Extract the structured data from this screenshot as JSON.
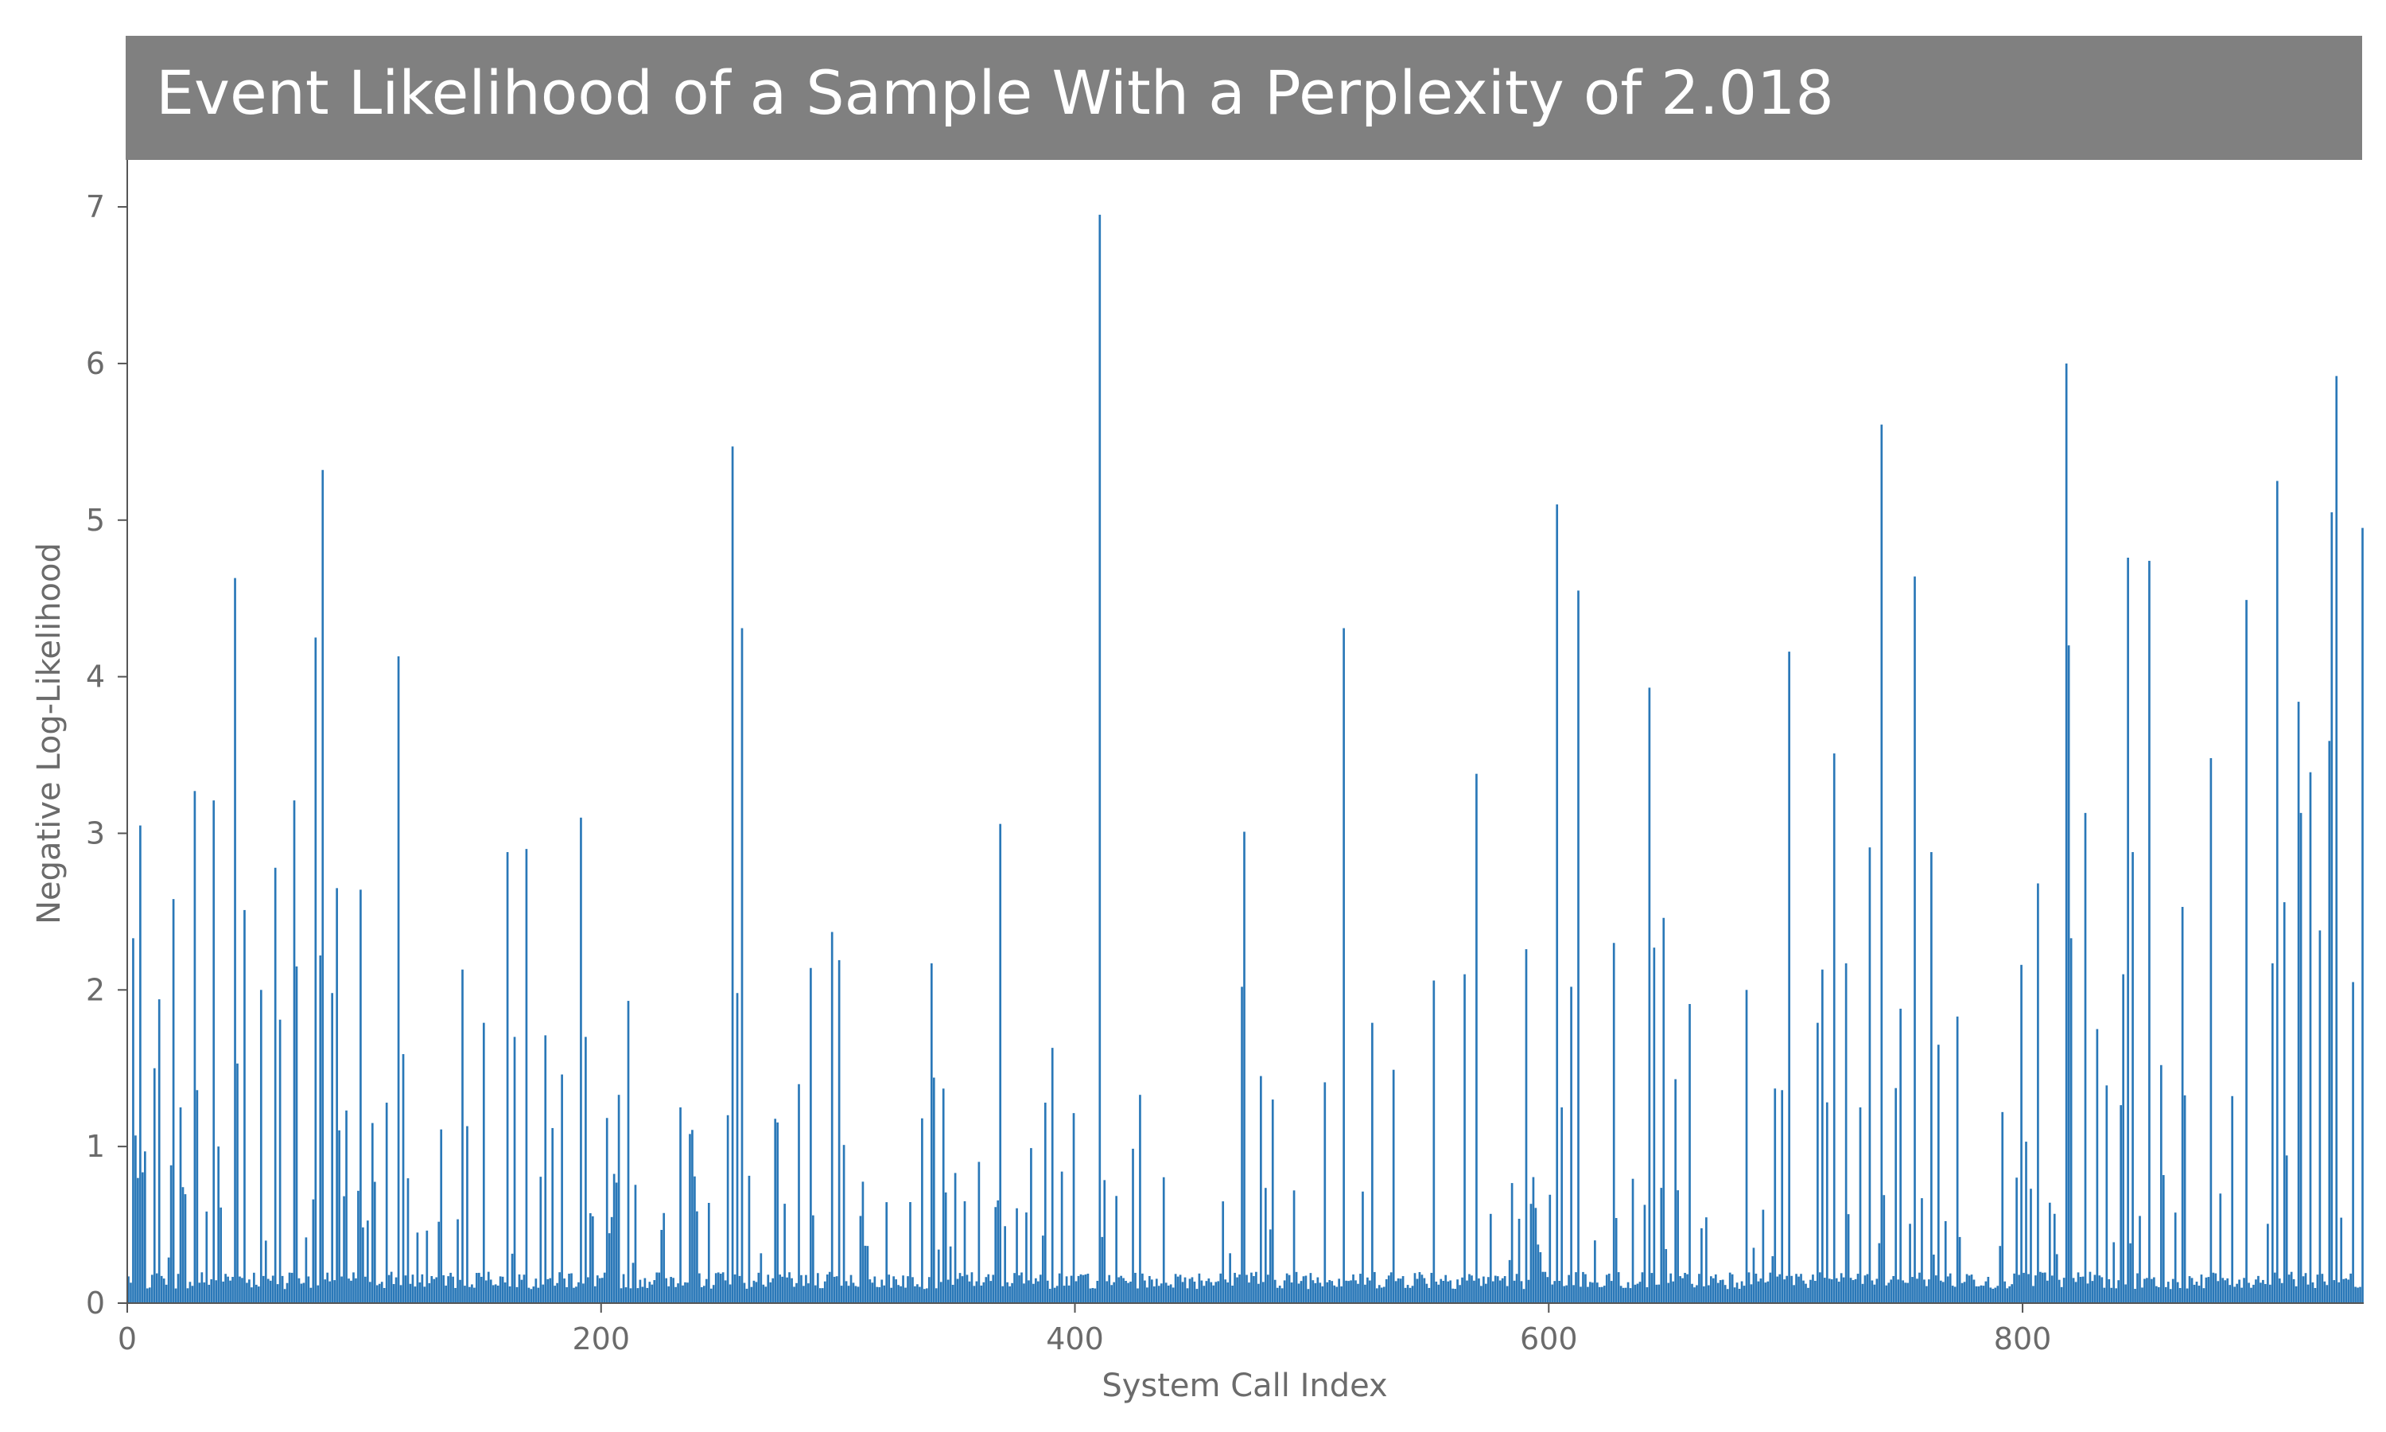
{
  "colors": {
    "bar": "#2a78b8",
    "title_band": "#808080",
    "title_text": "#ffffff",
    "axis": "#555555",
    "tick_text": "#6b6b6b"
  },
  "chart_data": {
    "type": "bar",
    "title": "Event Likelihood of a Sample With a Perplexity of 2.018",
    "xlabel": "System Call Index",
    "ylabel": "Negative Log-Likelihood",
    "xlim": [
      0,
      944
    ],
    "ylim": [
      0,
      7.3
    ],
    "xticks": [
      0,
      200,
      400,
      600,
      800
    ],
    "yticks": [
      0,
      1,
      2,
      3,
      4,
      5,
      6,
      7
    ],
    "grid": false,
    "baseline": 0.15,
    "peaks": [
      {
        "x": 2,
        "y": 2.33
      },
      {
        "x": 5,
        "y": 3.05
      },
      {
        "x": 11,
        "y": 1.5
      },
      {
        "x": 13,
        "y": 1.94
      },
      {
        "x": 18,
        "y": 0.88
      },
      {
        "x": 19,
        "y": 2.58
      },
      {
        "x": 22,
        "y": 1.25
      },
      {
        "x": 28,
        "y": 3.27
      },
      {
        "x": 29,
        "y": 1.36
      },
      {
        "x": 36,
        "y": 3.21
      },
      {
        "x": 38,
        "y": 1.0
      },
      {
        "x": 45,
        "y": 4.63
      },
      {
        "x": 46,
        "y": 1.53
      },
      {
        "x": 49,
        "y": 2.51
      },
      {
        "x": 56,
        "y": 2.0
      },
      {
        "x": 62,
        "y": 2.78
      },
      {
        "x": 64,
        "y": 1.81
      },
      {
        "x": 70,
        "y": 3.21
      },
      {
        "x": 71,
        "y": 2.15
      },
      {
        "x": 79,
        "y": 4.25
      },
      {
        "x": 81,
        "y": 2.22
      },
      {
        "x": 82,
        "y": 5.32
      },
      {
        "x": 86,
        "y": 1.98
      },
      {
        "x": 88,
        "y": 2.65
      },
      {
        "x": 92,
        "y": 1.23
      },
      {
        "x": 98,
        "y": 2.64
      },
      {
        "x": 103,
        "y": 1.15
      },
      {
        "x": 109,
        "y": 1.28
      },
      {
        "x": 114,
        "y": 4.13
      },
      {
        "x": 116,
        "y": 1.59
      },
      {
        "x": 141,
        "y": 2.13
      },
      {
        "x": 143,
        "y": 1.13
      },
      {
        "x": 150,
        "y": 1.79
      },
      {
        "x": 160,
        "y": 2.88
      },
      {
        "x": 163,
        "y": 1.7
      },
      {
        "x": 168,
        "y": 2.9
      },
      {
        "x": 176,
        "y": 1.71
      },
      {
        "x": 183,
        "y": 1.46
      },
      {
        "x": 191,
        "y": 3.1
      },
      {
        "x": 193,
        "y": 1.7
      },
      {
        "x": 207,
        "y": 1.33
      },
      {
        "x": 211,
        "y": 1.93
      },
      {
        "x": 233,
        "y": 1.25
      },
      {
        "x": 237,
        "y": 1.08
      },
      {
        "x": 253,
        "y": 1.2
      },
      {
        "x": 255,
        "y": 5.47
      },
      {
        "x": 257,
        "y": 1.98
      },
      {
        "x": 259,
        "y": 4.31
      },
      {
        "x": 288,
        "y": 2.14
      },
      {
        "x": 297,
        "y": 2.37
      },
      {
        "x": 300,
        "y": 2.19
      },
      {
        "x": 302,
        "y": 1.01
      },
      {
        "x": 335,
        "y": 1.18
      },
      {
        "x": 339,
        "y": 2.17
      },
      {
        "x": 340,
        "y": 1.44
      },
      {
        "x": 344,
        "y": 1.37
      },
      {
        "x": 368,
        "y": 3.06
      },
      {
        "x": 381,
        "y": 0.99
      },
      {
        "x": 387,
        "y": 1.28
      },
      {
        "x": 390,
        "y": 1.63
      },
      {
        "x": 394,
        "y": 0.84
      },
      {
        "x": 410,
        "y": 6.95
      },
      {
        "x": 427,
        "y": 1.33
      },
      {
        "x": 470,
        "y": 2.02
      },
      {
        "x": 471,
        "y": 3.01
      },
      {
        "x": 478,
        "y": 1.45
      },
      {
        "x": 483,
        "y": 1.3
      },
      {
        "x": 505,
        "y": 1.41
      },
      {
        "x": 513,
        "y": 4.31
      },
      {
        "x": 525,
        "y": 1.79
      },
      {
        "x": 534,
        "y": 1.49
      },
      {
        "x": 551,
        "y": 2.06
      },
      {
        "x": 564,
        "y": 2.1
      },
      {
        "x": 569,
        "y": 3.38
      },
      {
        "x": 590,
        "y": 2.26
      },
      {
        "x": 603,
        "y": 5.1
      },
      {
        "x": 605,
        "y": 1.25
      },
      {
        "x": 609,
        "y": 2.02
      },
      {
        "x": 612,
        "y": 4.55
      },
      {
        "x": 627,
        "y": 2.3
      },
      {
        "x": 642,
        "y": 3.93
      },
      {
        "x": 644,
        "y": 2.27
      },
      {
        "x": 648,
        "y": 2.46
      },
      {
        "x": 653,
        "y": 1.43
      },
      {
        "x": 659,
        "y": 1.91
      },
      {
        "x": 683,
        "y": 2.0
      },
      {
        "x": 698,
        "y": 1.36
      },
      {
        "x": 701,
        "y": 4.16
      },
      {
        "x": 713,
        "y": 1.79
      },
      {
        "x": 715,
        "y": 2.13
      },
      {
        "x": 720,
        "y": 3.51
      },
      {
        "x": 725,
        "y": 2.17
      },
      {
        "x": 735,
        "y": 2.91
      },
      {
        "x": 740,
        "y": 5.61
      },
      {
        "x": 748,
        "y": 1.88
      },
      {
        "x": 754,
        "y": 4.64
      },
      {
        "x": 761,
        "y": 2.88
      },
      {
        "x": 764,
        "y": 1.65
      },
      {
        "x": 772,
        "y": 1.83
      },
      {
        "x": 791,
        "y": 1.22
      },
      {
        "x": 799,
        "y": 2.16
      },
      {
        "x": 806,
        "y": 2.68
      },
      {
        "x": 818,
        "y": 6.0
      },
      {
        "x": 819,
        "y": 4.2
      },
      {
        "x": 820,
        "y": 2.33
      },
      {
        "x": 826,
        "y": 3.13
      },
      {
        "x": 831,
        "y": 1.75
      },
      {
        "x": 842,
        "y": 2.1
      },
      {
        "x": 844,
        "y": 4.76
      },
      {
        "x": 846,
        "y": 2.88
      },
      {
        "x": 853,
        "y": 4.74
      },
      {
        "x": 858,
        "y": 1.52
      },
      {
        "x": 867,
        "y": 2.53
      },
      {
        "x": 879,
        "y": 3.48
      },
      {
        "x": 894,
        "y": 4.49
      },
      {
        "x": 905,
        "y": 2.17
      },
      {
        "x": 907,
        "y": 5.25
      },
      {
        "x": 910,
        "y": 2.56
      },
      {
        "x": 916,
        "y": 3.84
      },
      {
        "x": 917,
        "y": 3.13
      },
      {
        "x": 921,
        "y": 3.39
      },
      {
        "x": 925,
        "y": 2.38
      },
      {
        "x": 929,
        "y": 3.59
      },
      {
        "x": 930,
        "y": 5.05
      },
      {
        "x": 932,
        "y": 5.92
      },
      {
        "x": 939,
        "y": 2.05
      },
      {
        "x": 943,
        "y": 4.95
      }
    ]
  }
}
